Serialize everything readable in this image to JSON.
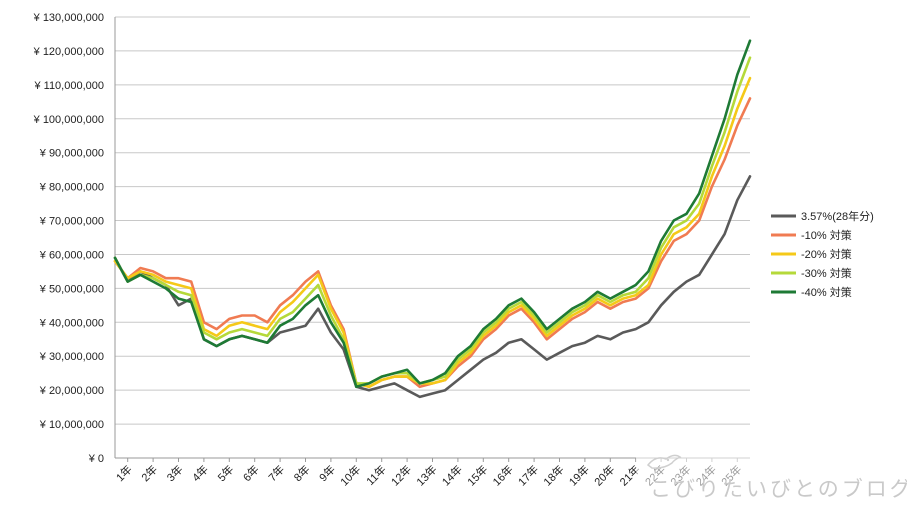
{
  "chart_data": {
    "type": "line",
    "title": "",
    "xlabel": "",
    "ylabel": "",
    "ylim": [
      0,
      130000000
    ],
    "y_ticks": [
      "¥ 0",
      "¥ 10,000,000",
      "¥ 20,000,000",
      "¥ 30,000,000",
      "¥ 40,000,000",
      "¥ 50,000,000",
      "¥ 60,000,000",
      "¥ 70,000,000",
      "¥ 80,000,000",
      "¥ 90,000,000",
      "¥ 100,000,000",
      "¥ 110,000,000",
      "¥ 120,000,000",
      "¥ 130,000,000"
    ],
    "x_ticks": [
      "1年",
      "2年",
      "3年",
      "4年",
      "5年",
      "6年",
      "7年",
      "8年",
      "9年",
      "10年",
      "11年",
      "12年",
      "13年",
      "14年",
      "15年",
      "16年",
      "17年",
      "18年",
      "19年",
      "20年",
      "21年",
      "22年",
      "23年",
      "24年",
      "25年"
    ],
    "grid": "horizontal",
    "legend_position": "right",
    "x": [
      0,
      0.5,
      1,
      1.5,
      2,
      2.5,
      3,
      3.5,
      4,
      4.5,
      5,
      5.5,
      6,
      6.5,
      7,
      7.5,
      8,
      8.5,
      9,
      9.5,
      10,
      10.5,
      11,
      11.5,
      12,
      12.5,
      13,
      13.5,
      14,
      14.5,
      15,
      15.5,
      16,
      16.5,
      17,
      17.5,
      18,
      18.5,
      19,
      19.5,
      20,
      20.5,
      21,
      21.5,
      22,
      22.5,
      23,
      23.5,
      24,
      24.5,
      25
    ],
    "series": [
      {
        "name": "3.57%(28年分)",
        "color": "#5a5a5a",
        "values": [
          59.0,
          52.0,
          55.0,
          53.0,
          51.0,
          45.0,
          47.0,
          35.0,
          33.0,
          35.0,
          36.0,
          35.0,
          34.0,
          37.0,
          38.0,
          39.0,
          44.0,
          37.0,
          32.0,
          21.0,
          20.0,
          21.0,
          22.0,
          20.0,
          18.0,
          19.0,
          20.0,
          23.0,
          26.0,
          29.0,
          31.0,
          34.0,
          35.0,
          32.0,
          29.0,
          31.0,
          33.0,
          34.0,
          36.0,
          35.0,
          37.0,
          38.0,
          40.0,
          45.0,
          49.0,
          52.0,
          54.0,
          60.0,
          66.0,
          76.0,
          83.0
        ]
      },
      {
        "name": "-10% 対策",
        "color": "#f07b52",
        "values": [
          58.0,
          53.0,
          56.0,
          55.0,
          53.0,
          53.0,
          52.0,
          40.0,
          38.0,
          41.0,
          42.0,
          42.0,
          40.0,
          45.0,
          48.0,
          52.0,
          55.0,
          45.0,
          38.0,
          22.0,
          21.0,
          23.0,
          24.0,
          24.0,
          21.0,
          22.0,
          23.0,
          27.0,
          30.0,
          35.0,
          38.0,
          42.0,
          44.0,
          40.0,
          35.0,
          38.0,
          41.0,
          43.0,
          46.0,
          44.0,
          46.0,
          47.0,
          50.0,
          58.0,
          64.0,
          66.0,
          70.0,
          80.0,
          88.0,
          98.0,
          106.0
        ]
      },
      {
        "name": "-20% 対策",
        "color": "#f5c918",
        "values": [
          58.0,
          53.0,
          55.0,
          54.0,
          52.0,
          51.0,
          50.0,
          38.0,
          36.0,
          39.0,
          40.0,
          39.0,
          38.0,
          43.0,
          46.0,
          50.0,
          54.0,
          44.0,
          37.0,
          22.0,
          21.0,
          23.0,
          24.0,
          24.0,
          22.0,
          22.0,
          23.0,
          28.0,
          31.0,
          36.0,
          39.0,
          43.0,
          45.0,
          41.0,
          36.0,
          39.0,
          42.0,
          44.0,
          47.0,
          45.0,
          47.0,
          48.0,
          51.0,
          60.0,
          66.0,
          68.0,
          72.0,
          83.0,
          92.0,
          103.0,
          112.0
        ]
      },
      {
        "name": "-30% 対策",
        "color": "#b5d93a",
        "values": [
          59.0,
          52.0,
          54.0,
          53.0,
          51.0,
          49.0,
          48.0,
          37.0,
          35.0,
          37.0,
          38.0,
          37.0,
          36.0,
          41.0,
          43.0,
          47.0,
          51.0,
          42.0,
          35.0,
          22.0,
          22.0,
          24.0,
          25.0,
          25.0,
          22.0,
          23.0,
          24.0,
          29.0,
          32.0,
          37.0,
          40.0,
          44.0,
          46.0,
          42.0,
          37.0,
          40.0,
          43.0,
          45.0,
          48.0,
          46.0,
          48.0,
          49.0,
          53.0,
          62.0,
          68.0,
          70.0,
          75.0,
          86.0,
          96.0,
          108.0,
          118.0
        ]
      },
      {
        "name": "-40% 対策",
        "color": "#1e7a35",
        "values": [
          59.0,
          52.0,
          54.0,
          52.0,
          50.0,
          47.0,
          46.0,
          35.0,
          33.0,
          35.0,
          36.0,
          35.0,
          34.0,
          39.0,
          41.0,
          45.0,
          48.0,
          40.0,
          34.0,
          21.0,
          22.0,
          24.0,
          25.0,
          26.0,
          22.0,
          23.0,
          25.0,
          30.0,
          33.0,
          38.0,
          41.0,
          45.0,
          47.0,
          43.0,
          38.0,
          41.0,
          44.0,
          46.0,
          49.0,
          47.0,
          49.0,
          51.0,
          55.0,
          64.0,
          70.0,
          72.0,
          78.0,
          89.0,
          100.0,
          113.0,
          123.0
        ]
      }
    ],
    "value_unit_note": "values in millions of yen"
  },
  "watermark": {
    "text": "こびりたいびとのブログ",
    "logo_icon": "bird-logo-icon"
  }
}
